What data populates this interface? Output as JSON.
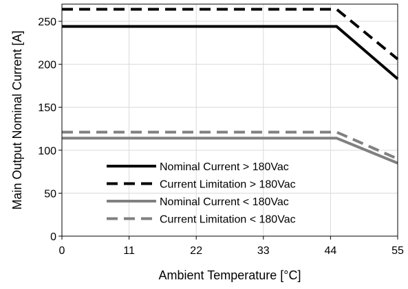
{
  "chart_data": {
    "type": "line",
    "xlabel": "Ambient Temperature [°C]",
    "ylabel": "Main Output Nominal Current [A]",
    "x_ticks": [
      0,
      11,
      22,
      33,
      44,
      55
    ],
    "y_ticks": [
      0,
      50,
      100,
      150,
      200,
      250
    ],
    "xlim": [
      0,
      55
    ],
    "ylim": [
      0,
      270
    ],
    "grid": true,
    "legend_position": "bottom-left",
    "series": [
      {
        "name": "Nominal Current > 180Vac",
        "color": "#000000",
        "dash": "solid",
        "x": [
          0,
          45,
          55
        ],
        "y": [
          244,
          244,
          183
        ]
      },
      {
        "name": "Current Limitation > 180Vac",
        "color": "#000000",
        "dash": "dashed",
        "x": [
          0,
          45,
          55
        ],
        "y": [
          264,
          264,
          206
        ]
      },
      {
        "name": "Nominal Current < 180Vac",
        "color": "#808080",
        "dash": "solid",
        "x": [
          0,
          45,
          55
        ],
        "y": [
          114,
          114,
          85
        ]
      },
      {
        "name": "Current Limitation < 180Vac",
        "color": "#808080",
        "dash": "dashed",
        "x": [
          0,
          45,
          55
        ],
        "y": [
          121,
          121,
          90
        ]
      }
    ]
  }
}
